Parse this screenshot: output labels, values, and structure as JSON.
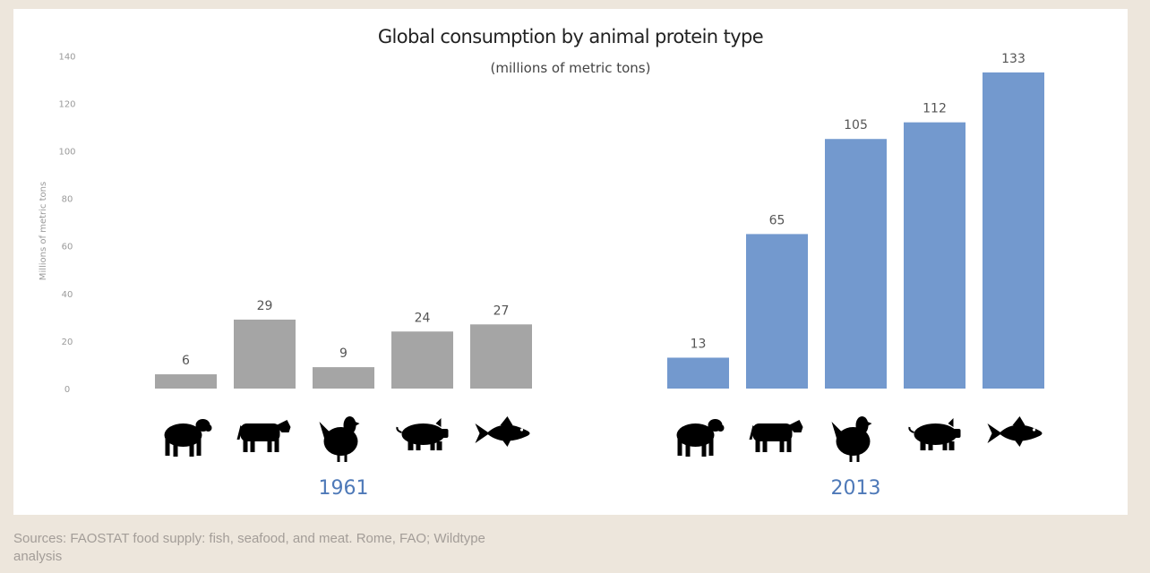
{
  "chart_data": {
    "type": "bar",
    "title": "Global consumption by animal protein type",
    "subtitle": "(millions of metric tons)",
    "ylabel": "Millions of metric tons",
    "ylim": [
      0,
      140
    ],
    "yticks": [
      "0",
      "20",
      "40",
      "60",
      "80",
      "100",
      "120",
      "140"
    ],
    "grid": false,
    "categories": [
      "sheep",
      "cattle",
      "poultry",
      "pig",
      "fish"
    ],
    "groups": [
      {
        "label": "1961",
        "values": [
          6,
          29,
          9,
          24,
          27
        ],
        "color": "#a5a5a5"
      },
      {
        "label": "2013",
        "values": [
          13,
          65,
          105,
          112,
          133
        ],
        "color": "#7399ce"
      }
    ],
    "label_color": "#4e79b8"
  },
  "icons": [
    "sheep-icon",
    "cow-icon",
    "chicken-icon",
    "pig-icon",
    "fish-icon"
  ],
  "source": "Sources: FAOSTAT food supply: fish, seafood, and meat. Rome, FAO; Wildtype analysis"
}
